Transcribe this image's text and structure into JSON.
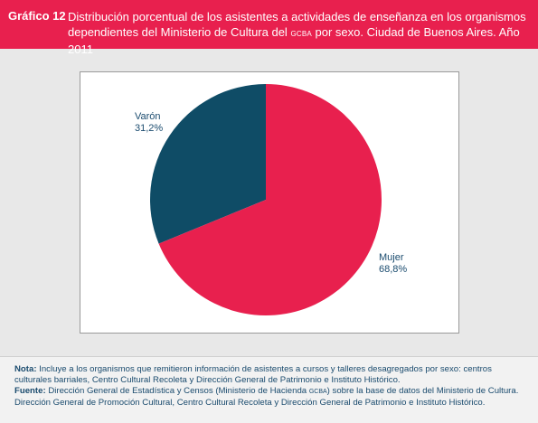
{
  "header": {
    "label": "Gráfico 12",
    "title_part1": "Distribución porcentual de los asistentes a actividades de enseñanza en los organismos dependientes del Ministerio de Cultura del ",
    "title_gcba": "GCBA",
    "title_part2": " por sexo. Ciudad de Buenos Aires. Año 2011"
  },
  "chart_data": {
    "type": "pie",
    "title": "Distribución porcentual de los asistentes a actividades de enseñanza en los organismos dependientes del Ministerio de Cultura del GCBA por sexo. Ciudad de Buenos Aires. Año 2011",
    "slices": [
      {
        "name": "Varón",
        "value": 31.2,
        "value_label": "31,2%",
        "color": "#0f4c66"
      },
      {
        "name": "Mujer",
        "value": 68.8,
        "value_label": "68,8%",
        "color": "#e8204e"
      }
    ]
  },
  "footer": {
    "nota_label": "Nota:",
    "nota_text": " Incluye a los organismos que remitieron información de asistentes a cursos y talleres desagregados por sexo: centros culturales barriales, Centro Cultural Recoleta y Dirección General de Patrimonio e Instituto Histórico.",
    "fuente_label": "Fuente:",
    "fuente_part1": " Dirección General de Estadística y Censos (Ministerio de Hacienda ",
    "fuente_gcba": "GCBA",
    "fuente_part2": ") sobre la base de datos del Ministerio de Cultura. Dirección General de Promoción Cultural, Centro Cultural Recoleta y Dirección General de Patrimonio e Instituto Histórico."
  }
}
